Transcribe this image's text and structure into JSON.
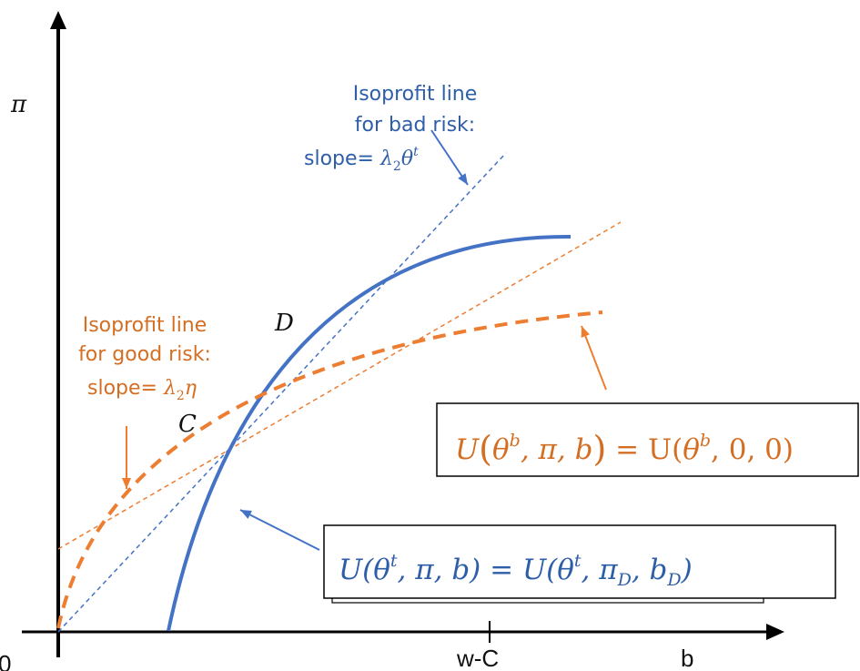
{
  "axes": {
    "y_label": "π",
    "x_label": "b",
    "origin_label": "0",
    "x_tick_label": "w-C"
  },
  "points": {
    "C": "C",
    "D": "D"
  },
  "bad_risk_label": {
    "line1": "Isoprofit line",
    "line2": "for bad risk:",
    "line3_prefix": "slope= ",
    "lambda": "λ",
    "lambda_sub": "2",
    "theta": "θ",
    "theta_sup": "t"
  },
  "good_risk_label": {
    "line1": "Isoprofit line",
    "line2": "for good risk:",
    "line3_prefix": "slope= ",
    "lambda": "λ",
    "lambda_sub": "2",
    "eta": "η"
  },
  "good_type_equation": {
    "U": "U",
    "theta": "θ",
    "sup": "b",
    "rest1": ", π, b",
    "equals": " = U(",
    "theta2": "θ",
    "sup2": "b",
    "rest2": ", 0, 0)"
  },
  "bad_type_equation": {
    "U": "U(",
    "theta": "θ",
    "sup": "t",
    "rest1": ", π, b) = U(",
    "theta2": "θ",
    "sup2": "t",
    "rest2": ", π",
    "sub_D1": "D",
    "mid": ", b",
    "sub_D2": "D",
    "close": ")"
  },
  "colors": {
    "blue": "#4472c4",
    "orange": "#ed7d31",
    "blue_text": "#2e5ea8",
    "orange_text": "#d46e22",
    "axis": "#000000"
  }
}
